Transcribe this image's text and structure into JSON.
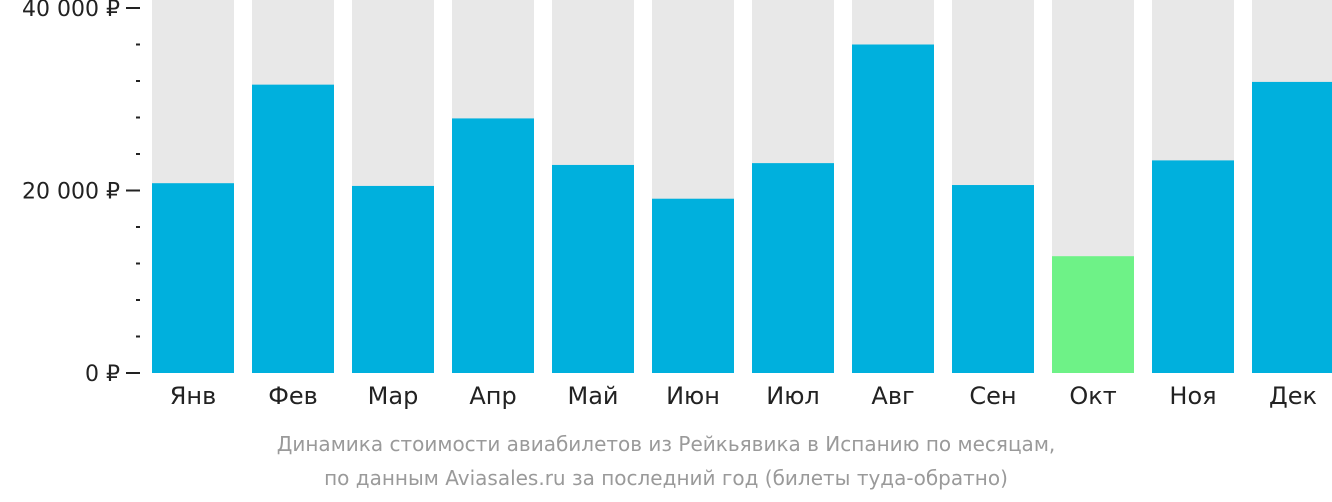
{
  "chart_data": {
    "type": "bar",
    "categories": [
      "Янв",
      "Фев",
      "Мар",
      "Апр",
      "Май",
      "Июн",
      "Июл",
      "Авг",
      "Сен",
      "Окт",
      "Ноя",
      "Дек"
    ],
    "values": [
      20800,
      31600,
      20500,
      27900,
      22800,
      19100,
      23000,
      36000,
      20600,
      12800,
      23300,
      31900
    ],
    "ylim": [
      0,
      40000
    ],
    "yticks": [
      {
        "value": 0,
        "label": "0 ₽"
      },
      {
        "value": 20000,
        "label": "20 000 ₽"
      },
      {
        "value": 40000,
        "label": "40 000 ₽"
      }
    ],
    "minor_tick_step": 4000,
    "highlight_index": 9,
    "grid": false,
    "colors": {
      "bar": "#00b0dd",
      "highlight": "#6ef287",
      "background_bar": "#e8e8e8",
      "axis": "#222222"
    },
    "caption_lines": [
      "Динамика стоимости авиабилетов из Рейкьявика в Испанию по месяцам,",
      "по данным Aviasales.ru за последний год (билеты туда-обратно)"
    ]
  }
}
